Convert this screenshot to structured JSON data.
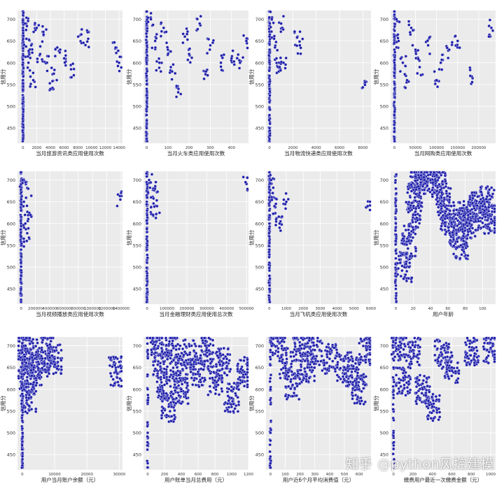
{
  "watermark": "知乎 @python风控建模",
  "colors": {
    "point": "#1f1fa8",
    "point_edge": "#e8e8ff",
    "panel_bg": "#ebebeb",
    "grid": "#ffffff"
  },
  "chart_data": [
    {
      "type": "scatter",
      "xlabel": "当月旅游资讯类应用使用次数",
      "ylabel": "信用分",
      "xlim": [
        -800,
        14500
      ],
      "ylim": [
        415,
        720
      ],
      "xticks": [
        0,
        2000,
        4000,
        6000,
        8000,
        10000,
        12000,
        14000
      ],
      "yticks": [
        450,
        500,
        550,
        600,
        650,
        700
      ],
      "grid": true,
      "legend": "none",
      "points": [
        [
          0,
          720
        ],
        [
          0,
          700
        ],
        [
          0,
          680
        ],
        [
          0,
          660
        ],
        [
          0,
          640
        ],
        [
          0,
          620
        ],
        [
          0,
          600
        ],
        [
          0,
          580
        ],
        [
          0,
          560
        ],
        [
          0,
          540
        ],
        [
          0,
          520
        ],
        [
          0,
          500
        ],
        [
          0,
          480
        ],
        [
          0,
          460
        ],
        [
          0,
          440
        ],
        [
          0,
          425
        ],
        [
          300,
          690
        ],
        [
          500,
          655
        ],
        [
          800,
          600
        ],
        [
          1200,
          640
        ],
        [
          1500,
          560
        ],
        [
          2000,
          680
        ],
        [
          2500,
          620
        ],
        [
          3000,
          665
        ],
        [
          3500,
          600
        ],
        [
          4000,
          540
        ],
        [
          4500,
          575
        ],
        [
          5000,
          635
        ],
        [
          6000,
          610
        ],
        [
          7000,
          585
        ],
        [
          8500,
          665
        ],
        [
          9500,
          655
        ],
        [
          13500,
          635
        ],
        [
          14000,
          600
        ]
      ]
    },
    {
      "type": "scatter",
      "xlabel": "当月火车类应用使用次数",
      "ylabel": "信用分",
      "xlim": [
        -15,
        480
      ],
      "ylim": [
        415,
        720
      ],
      "xticks": [
        0,
        100,
        200,
        300,
        400
      ],
      "yticks": [
        450,
        500,
        550,
        600,
        650,
        700
      ],
      "grid": true,
      "legend": "none",
      "points": [
        [
          0,
          720
        ],
        [
          0,
          690
        ],
        [
          0,
          660
        ],
        [
          0,
          630
        ],
        [
          0,
          600
        ],
        [
          0,
          570
        ],
        [
          0,
          540
        ],
        [
          0,
          510
        ],
        [
          0,
          480
        ],
        [
          0,
          450
        ],
        [
          0,
          425
        ],
        [
          20,
          700
        ],
        [
          40,
          650
        ],
        [
          60,
          600
        ],
        [
          80,
          680
        ],
        [
          100,
          630
        ],
        [
          120,
          580
        ],
        [
          150,
          540
        ],
        [
          180,
          660
        ],
        [
          200,
          620
        ],
        [
          250,
          690
        ],
        [
          280,
          580
        ],
        [
          300,
          640
        ],
        [
          350,
          600
        ],
        [
          400,
          610
        ],
        [
          440,
          600
        ],
        [
          470,
          650
        ]
      ]
    },
    {
      "type": "scatter",
      "xlabel": "当月物流快递类应用使用次数",
      "ylabel": "信用分",
      "xlim": [
        -300,
        8700
      ],
      "ylim": [
        415,
        720
      ],
      "xticks": [
        0,
        2000,
        4000,
        6000,
        8000
      ],
      "yticks": [
        450,
        500,
        550,
        600,
        650,
        700
      ],
      "grid": true,
      "legend": "none",
      "points": [
        [
          0,
          720
        ],
        [
          0,
          690
        ],
        [
          0,
          660
        ],
        [
          0,
          630
        ],
        [
          0,
          600
        ],
        [
          0,
          570
        ],
        [
          0,
          540
        ],
        [
          0,
          510
        ],
        [
          0,
          480
        ],
        [
          0,
          450
        ],
        [
          0,
          425
        ],
        [
          200,
          700
        ],
        [
          400,
          655
        ],
        [
          600,
          610
        ],
        [
          800,
          580
        ],
        [
          1000,
          690
        ],
        [
          1200,
          600
        ],
        [
          2400,
          660
        ],
        [
          2600,
          640
        ],
        [
          8200,
          555
        ]
      ]
    },
    {
      "type": "scatter",
      "xlabel": "当月网购类应用使用次数",
      "ylabel": "信用分",
      "xlim": [
        -9000,
        240000
      ],
      "ylim": [
        415,
        720
      ],
      "xticks": [
        0,
        50000,
        100000,
        150000,
        200000
      ],
      "yticks": [
        450,
        500,
        550,
        600,
        650,
        700
      ],
      "grid": true,
      "legend": "none",
      "points": [
        [
          0,
          720
        ],
        [
          0,
          690
        ],
        [
          0,
          660
        ],
        [
          0,
          630
        ],
        [
          0,
          600
        ],
        [
          0,
          570
        ],
        [
          0,
          540
        ],
        [
          0,
          510
        ],
        [
          0,
          480
        ],
        [
          0,
          450
        ],
        [
          0,
          425
        ],
        [
          5000,
          700
        ],
        [
          10000,
          650
        ],
        [
          20000,
          600
        ],
        [
          30000,
          560
        ],
        [
          40000,
          680
        ],
        [
          50000,
          630
        ],
        [
          60000,
          590
        ],
        [
          80000,
          640
        ],
        [
          100000,
          560
        ],
        [
          110000,
          600
        ],
        [
          130000,
          630
        ],
        [
          150000,
          650
        ],
        [
          180000,
          570
        ],
        [
          230000,
          680
        ]
      ]
    },
    {
      "type": "scatter",
      "xlabel": "当月视频播放类应用使用次数",
      "ylabel": "信用分",
      "xlim": [
        -50000,
        1420000
      ],
      "ylim": [
        415,
        720
      ],
      "xticks": [
        0,
        200000,
        400000,
        600000,
        800000,
        1000000,
        1200000,
        1400000
      ],
      "yticks": [
        450,
        500,
        550,
        600,
        650,
        700
      ],
      "grid": true,
      "legend": "none",
      "points": [
        [
          0,
          720
        ],
        [
          0,
          690
        ],
        [
          0,
          660
        ],
        [
          0,
          630
        ],
        [
          0,
          600
        ],
        [
          0,
          570
        ],
        [
          0,
          540
        ],
        [
          0,
          510
        ],
        [
          0,
          480
        ],
        [
          0,
          450
        ],
        [
          0,
          425
        ],
        [
          20000,
          700
        ],
        [
          40000,
          650
        ],
        [
          60000,
          600
        ],
        [
          80000,
          560
        ],
        [
          100000,
          680
        ],
        [
          130000,
          620
        ],
        [
          1390000,
          655
        ]
      ]
    },
    {
      "type": "scatter",
      "xlabel": "当月金融理财类应用使用总次数",
      "ylabel": "信用分",
      "xlim": [
        -18000,
        510000
      ],
      "ylim": [
        415,
        720
      ],
      "xticks": [
        0,
        100000,
        200000,
        300000,
        400000,
        500000
      ],
      "yticks": [
        450,
        500,
        550,
        600,
        650,
        700
      ],
      "grid": true,
      "legend": "none",
      "points": [
        [
          0,
          720
        ],
        [
          0,
          690
        ],
        [
          0,
          660
        ],
        [
          0,
          630
        ],
        [
          0,
          600
        ],
        [
          0,
          570
        ],
        [
          0,
          540
        ],
        [
          0,
          510
        ],
        [
          0,
          480
        ],
        [
          0,
          450
        ],
        [
          0,
          425
        ],
        [
          10000,
          700
        ],
        [
          20000,
          660
        ],
        [
          30000,
          620
        ],
        [
          40000,
          680
        ],
        [
          50000,
          640
        ],
        [
          495000,
          695
        ]
      ]
    },
    {
      "type": "scatter",
      "xlabel": "当月飞机类应用使用次数",
      "ylabel": "信用分",
      "xlim": [
        -200,
        6000
      ],
      "ylim": [
        415,
        720
      ],
      "xticks": [
        0,
        1000,
        2000,
        3000,
        4000,
        5000,
        6000
      ],
      "yticks": [
        450,
        500,
        550,
        600,
        650,
        700
      ],
      "grid": true,
      "legend": "none",
      "points": [
        [
          0,
          720
        ],
        [
          0,
          690
        ],
        [
          0,
          660
        ],
        [
          0,
          630
        ],
        [
          0,
          600
        ],
        [
          0,
          570
        ],
        [
          0,
          540
        ],
        [
          0,
          510
        ],
        [
          0,
          480
        ],
        [
          0,
          450
        ],
        [
          0,
          425
        ],
        [
          100,
          700
        ],
        [
          200,
          670
        ],
        [
          300,
          640
        ],
        [
          400,
          610
        ],
        [
          600,
          600
        ],
        [
          1000,
          650
        ],
        [
          5800,
          640
        ]
      ]
    },
    {
      "type": "scatter",
      "xlabel": "用户年龄",
      "ylabel": "信用分",
      "xlim": [
        -6,
        115
      ],
      "ylim": [
        415,
        720
      ],
      "xticks": [
        0,
        20,
        40,
        60,
        80,
        100
      ],
      "yticks": [
        450,
        500,
        550,
        600,
        650,
        700
      ],
      "grid": true,
      "legend": "none",
      "points": [
        [
          0,
          680
        ],
        [
          0,
          640
        ],
        [
          0,
          600
        ],
        [
          0,
          560
        ],
        [
          0,
          520
        ],
        [
          0,
          480
        ],
        [
          0,
          450
        ],
        [
          10,
          500
        ],
        [
          15,
          560
        ],
        [
          20,
          620
        ],
        [
          22,
          660
        ],
        [
          25,
          700
        ],
        [
          30,
          710
        ],
        [
          35,
          720
        ],
        [
          40,
          700
        ],
        [
          50,
          690
        ],
        [
          55,
          650
        ],
        [
          60,
          620
        ],
        [
          65,
          600
        ],
        [
          70,
          580
        ],
        [
          75,
          550
        ],
        [
          80,
          620
        ],
        [
          85,
          600
        ],
        [
          90,
          640
        ],
        [
          100,
          620
        ],
        [
          105,
          650
        ],
        [
          110,
          610
        ]
      ]
    },
    {
      "type": "scatter",
      "xlabel": "用户当月账户余额（元）",
      "ylabel": "信用分",
      "xlim": [
        -1500,
        31000
      ],
      "ylim": [
        415,
        720
      ],
      "xticks": [
        0,
        10000,
        20000,
        30000
      ],
      "yticks": [
        450,
        500,
        550,
        600,
        650,
        700
      ],
      "grid": true,
      "legend": "none",
      "points": [
        [
          0,
          720
        ],
        [
          0,
          690
        ],
        [
          0,
          660
        ],
        [
          0,
          630
        ],
        [
          0,
          600
        ],
        [
          0,
          570
        ],
        [
          0,
          540
        ],
        [
          0,
          510
        ],
        [
          0,
          480
        ],
        [
          0,
          450
        ],
        [
          0,
          425
        ],
        [
          500,
          700
        ],
        [
          1000,
          660
        ],
        [
          1500,
          620
        ],
        [
          2000,
          580
        ],
        [
          3000,
          680
        ],
        [
          4000,
          640
        ],
        [
          6000,
          660
        ],
        [
          8000,
          690
        ],
        [
          10000,
          670
        ],
        [
          29000,
          640
        ]
      ]
    },
    {
      "type": "scatter",
      "xlabel": "用户账单当月总费用（元）",
      "ylabel": "信用分",
      "xlim": [
        -50,
        1200
      ],
      "ylim": [
        415,
        720
      ],
      "xticks": [
        0,
        200,
        400,
        600,
        800,
        1000,
        1200
      ],
      "yticks": [
        450,
        500,
        550,
        600,
        650,
        700
      ],
      "grid": true,
      "legend": "none",
      "points": [
        [
          0,
          690
        ],
        [
          0,
          600
        ],
        [
          0,
          500
        ],
        [
          0,
          430
        ],
        [
          100,
          710
        ],
        [
          150,
          660
        ],
        [
          200,
          610
        ],
        [
          250,
          560
        ],
        [
          300,
          700
        ],
        [
          350,
          650
        ],
        [
          400,
          600
        ],
        [
          500,
          680
        ],
        [
          600,
          640
        ],
        [
          700,
          690
        ],
        [
          800,
          620
        ],
        [
          900,
          660
        ],
        [
          1000,
          580
        ],
        [
          1150,
          640
        ]
      ]
    },
    {
      "type": "scatter",
      "xlabel": "用户近6个月平均消费值（元）",
      "ylabel": "信用分",
      "xlim": [
        -30,
        680
      ],
      "ylim": [
        415,
        720
      ],
      "xticks": [
        0,
        100,
        200,
        300,
        400,
        500,
        600
      ],
      "yticks": [
        450,
        500,
        550,
        600,
        650,
        700
      ],
      "grid": true,
      "legend": "none",
      "points": [
        [
          0,
          690
        ],
        [
          0,
          600
        ],
        [
          0,
          500
        ],
        [
          0,
          430
        ],
        [
          50,
          710
        ],
        [
          100,
          660
        ],
        [
          150,
          610
        ],
        [
          200,
          700
        ],
        [
          250,
          650
        ],
        [
          300,
          690
        ],
        [
          400,
          670
        ],
        [
          500,
          650
        ],
        [
          550,
          640
        ],
        [
          600,
          600
        ],
        [
          650,
          690
        ]
      ]
    },
    {
      "type": "scatter",
      "xlabel": "缴费用户最近一次缴费金额（元）",
      "ylabel": "信用分",
      "xlim": [
        -30,
        1050
      ],
      "ylim": [
        415,
        720
      ],
      "xticks": [
        0,
        200,
        400,
        600,
        800,
        1000
      ],
      "yticks": [
        450,
        500,
        550,
        600,
        650,
        700
      ],
      "grid": true,
      "legend": "none",
      "points": [
        [
          0,
          720
        ],
        [
          0,
          650
        ],
        [
          0,
          580
        ],
        [
          0,
          500
        ],
        [
          0,
          430
        ],
        [
          50,
          700
        ],
        [
          100,
          620
        ],
        [
          200,
          690
        ],
        [
          300,
          600
        ],
        [
          400,
          560
        ],
        [
          500,
          680
        ],
        [
          600,
          650
        ],
        [
          800,
          690
        ],
        [
          1000,
          695
        ]
      ]
    }
  ]
}
